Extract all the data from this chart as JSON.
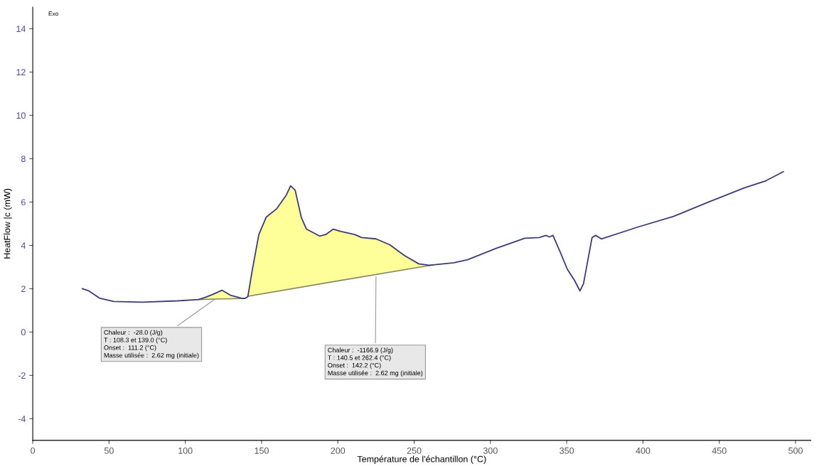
{
  "chart_data": {
    "type": "line",
    "xlabel": "Température de l'échantillon (°C)",
    "ylabel": "HeatFlow |c (mW)",
    "xlim": [
      0,
      510
    ],
    "xticks": [
      0,
      50,
      100,
      150,
      200,
      250,
      300,
      350,
      400,
      450,
      500
    ],
    "ylim": [
      -5,
      15
    ],
    "yticks": [
      -4,
      -2,
      0,
      2,
      4,
      6,
      8,
      10,
      12,
      14
    ],
    "grid": false,
    "annotations": [
      "Exo",
      {
        "text": "Chaleur :  -28.0 (J/g)\nT : 108.3 et 139.0 (°C)\nOnset :  111.2 (°C)\nMasse utilisée :  2.62 mg (initiale)",
        "x": 121,
        "y": 1.6
      },
      {
        "text": "Chaleur :  -1166.9 (J/g)\nT : 140.5 et 262.4 (°C)\nOnset :  142.2 (°C)\nMasse utilisée :  2.62 mg (initiale)",
        "x": 225,
        "y": 2.65
      }
    ],
    "series": [
      {
        "type": "line",
        "color": "#888866",
        "x": [
          108.7,
          124,
          139
        ],
        "values": [
          1.5,
          1.53,
          1.55
        ]
      },
      {
        "type": "line",
        "color": "#888866",
        "x": [
          141,
          200,
          262.4
        ],
        "values": [
          1.65,
          2.36,
          3.1
        ]
      },
      {
        "type": "area",
        "color": "#ffff99",
        "x": [
          108.7,
          113,
          118,
          124,
          129.6,
          136.6,
          139
        ],
        "values": [
          1.5,
          1.6,
          1.74,
          1.93,
          1.7,
          1.57,
          1.55
        ]
      },
      {
        "type": "area",
        "color": "#ffff99",
        "x": [
          141,
          144,
          148.2,
          153,
          160,
          166,
          169,
          172,
          176,
          179.4,
          188,
          192,
          197,
          201.7,
          211,
          215.6,
          225,
          234,
          243.5,
          253,
          259.8,
          262.4
        ],
        "values": [
          1.64,
          2.9,
          4.5,
          5.3,
          5.7,
          6.3,
          6.75,
          6.55,
          5.3,
          4.75,
          4.43,
          4.5,
          4.75,
          4.65,
          4.5,
          4.36,
          4.3,
          4.03,
          3.54,
          3.15,
          3.08,
          3.1
        ]
      },
      {
        "color": "#3c3c78",
        "x": [
          32.5,
          36.7,
          43.7,
          53,
          71.6,
          94.8,
          108.7,
          113,
          118,
          124,
          129.6,
          136.6,
          139,
          141,
          144,
          148.2,
          153,
          160,
          166,
          169,
          172,
          176,
          179.4,
          188,
          192,
          197,
          201.7,
          211,
          215.6,
          225,
          234,
          243.5,
          253,
          259.8,
          262.4,
          276,
          285,
          304,
          322.5,
          332,
          336.4,
          338.7,
          341,
          345.7,
          350.4,
          355,
          358.7,
          361,
          366.6,
          369,
          372.7,
          396.8,
          420,
          443,
          466.5,
          480.5,
          492
        ],
        "values": [
          2.0,
          1.9,
          1.57,
          1.41,
          1.38,
          1.44,
          1.5,
          1.6,
          1.74,
          1.93,
          1.7,
          1.57,
          1.55,
          1.64,
          2.9,
          4.5,
          5.3,
          5.7,
          6.3,
          6.75,
          6.55,
          5.3,
          4.75,
          4.43,
          4.5,
          4.75,
          4.65,
          4.5,
          4.36,
          4.3,
          4.03,
          3.54,
          3.15,
          3.08,
          3.1,
          3.2,
          3.34,
          3.87,
          4.33,
          4.36,
          4.46,
          4.39,
          4.46,
          3.7,
          2.9,
          2.4,
          1.9,
          2.23,
          4.36,
          4.46,
          4.3,
          4.85,
          5.34,
          6.0,
          6.66,
          6.98,
          7.4
        ]
      }
    ]
  }
}
